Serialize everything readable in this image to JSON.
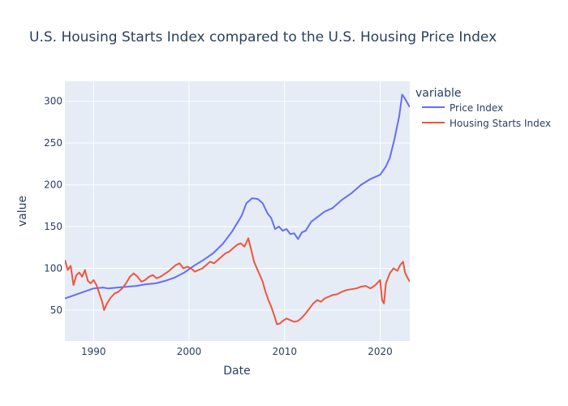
{
  "chart_data": {
    "type": "line",
    "title": "U.S. Housing Starts Index compared to the U.S. Housing Price Index",
    "xlabel": "Date",
    "ylabel": "value",
    "xlim": [
      1987.0,
      2023.1
    ],
    "ylim": [
      13,
      324
    ],
    "xticks": [
      1990,
      2000,
      2010,
      2020
    ],
    "yticks": [
      50,
      100,
      150,
      200,
      250,
      300
    ],
    "legend": {
      "title": "variable",
      "placement": "right"
    },
    "grid": true,
    "colors": {
      "background": "#e5ecf6",
      "grid": "#ffffff"
    },
    "series": [
      {
        "name": "Price Index",
        "color": "#636efa",
        "points": [
          [
            1987.0,
            64
          ],
          [
            1988.0,
            68
          ],
          [
            1989.0,
            72
          ],
          [
            1990.0,
            76
          ],
          [
            1991.0,
            77
          ],
          [
            1991.5,
            76
          ],
          [
            1992.5,
            77
          ],
          [
            1993.5,
            78
          ],
          [
            1994.5,
            79
          ],
          [
            1995.5,
            81
          ],
          [
            1996.5,
            82
          ],
          [
            1997.5,
            85
          ],
          [
            1998.5,
            89
          ],
          [
            1999.5,
            95
          ],
          [
            2000.5,
            103
          ],
          [
            2001.5,
            110
          ],
          [
            2002.5,
            118
          ],
          [
            2003.5,
            129
          ],
          [
            2004.5,
            144
          ],
          [
            2005.5,
            163
          ],
          [
            2006.0,
            178
          ],
          [
            2006.6,
            184
          ],
          [
            2007.2,
            183
          ],
          [
            2007.7,
            178
          ],
          [
            2008.2,
            166
          ],
          [
            2008.6,
            160
          ],
          [
            2009.0,
            147
          ],
          [
            2009.4,
            150
          ],
          [
            2009.8,
            145
          ],
          [
            2010.2,
            147
          ],
          [
            2010.6,
            141
          ],
          [
            2011.0,
            142
          ],
          [
            2011.4,
            135
          ],
          [
            2011.8,
            143
          ],
          [
            2012.2,
            145
          ],
          [
            2012.8,
            156
          ],
          [
            2013.5,
            162
          ],
          [
            2014.2,
            168
          ],
          [
            2015.0,
            172
          ],
          [
            2016.0,
            182
          ],
          [
            2017.0,
            190
          ],
          [
            2018.0,
            200
          ],
          [
            2019.0,
            207
          ],
          [
            2020.0,
            212
          ],
          [
            2020.6,
            222
          ],
          [
            2021.0,
            232
          ],
          [
            2021.5,
            255
          ],
          [
            2022.0,
            282
          ],
          [
            2022.3,
            308
          ],
          [
            2022.6,
            303
          ],
          [
            2023.1,
            293
          ]
        ]
      },
      {
        "name": "Housing Starts Index",
        "color": "#ef553b",
        "points": [
          [
            1987.0,
            110
          ],
          [
            1987.3,
            98
          ],
          [
            1987.6,
            103
          ],
          [
            1987.9,
            80
          ],
          [
            1988.2,
            92
          ],
          [
            1988.5,
            95
          ],
          [
            1988.8,
            90
          ],
          [
            1989.1,
            98
          ],
          [
            1989.4,
            85
          ],
          [
            1989.7,
            82
          ],
          [
            1990.0,
            86
          ],
          [
            1990.3,
            80
          ],
          [
            1990.6,
            70
          ],
          [
            1990.9,
            60
          ],
          [
            1991.1,
            50
          ],
          [
            1991.4,
            58
          ],
          [
            1991.8,
            65
          ],
          [
            1992.2,
            70
          ],
          [
            1992.6,
            72
          ],
          [
            1993.0,
            76
          ],
          [
            1993.4,
            82
          ],
          [
            1993.8,
            90
          ],
          [
            1994.2,
            94
          ],
          [
            1994.6,
            90
          ],
          [
            1995.0,
            84
          ],
          [
            1995.4,
            86
          ],
          [
            1995.8,
            90
          ],
          [
            1996.2,
            92
          ],
          [
            1996.6,
            88
          ],
          [
            1997.0,
            90
          ],
          [
            1997.4,
            93
          ],
          [
            1997.8,
            96
          ],
          [
            1998.2,
            100
          ],
          [
            1998.6,
            104
          ],
          [
            1999.0,
            106
          ],
          [
            1999.4,
            100
          ],
          [
            1999.8,
            102
          ],
          [
            2000.2,
            100
          ],
          [
            2000.6,
            96
          ],
          [
            2001.0,
            98
          ],
          [
            2001.4,
            100
          ],
          [
            2001.8,
            104
          ],
          [
            2002.2,
            108
          ],
          [
            2002.6,
            106
          ],
          [
            2003.0,
            110
          ],
          [
            2003.4,
            114
          ],
          [
            2003.8,
            118
          ],
          [
            2004.2,
            120
          ],
          [
            2004.6,
            124
          ],
          [
            2005.0,
            128
          ],
          [
            2005.4,
            130
          ],
          [
            2005.8,
            126
          ],
          [
            2006.2,
            136
          ],
          [
            2006.5,
            122
          ],
          [
            2006.8,
            108
          ],
          [
            2007.1,
            100
          ],
          [
            2007.4,
            92
          ],
          [
            2007.7,
            84
          ],
          [
            2008.0,
            72
          ],
          [
            2008.3,
            62
          ],
          [
            2008.6,
            54
          ],
          [
            2008.9,
            44
          ],
          [
            2009.2,
            33
          ],
          [
            2009.5,
            34
          ],
          [
            2009.8,
            37
          ],
          [
            2010.2,
            40
          ],
          [
            2010.6,
            38
          ],
          [
            2011.0,
            36
          ],
          [
            2011.4,
            37
          ],
          [
            2011.8,
            41
          ],
          [
            2012.2,
            46
          ],
          [
            2012.6,
            52
          ],
          [
            2013.0,
            58
          ],
          [
            2013.4,
            62
          ],
          [
            2013.8,
            60
          ],
          [
            2014.2,
            64
          ],
          [
            2014.6,
            66
          ],
          [
            2015.0,
            68
          ],
          [
            2015.5,
            69
          ],
          [
            2016.0,
            72
          ],
          [
            2016.5,
            74
          ],
          [
            2017.0,
            75
          ],
          [
            2017.5,
            76
          ],
          [
            2018.0,
            78
          ],
          [
            2018.5,
            79
          ],
          [
            2019.0,
            76
          ],
          [
            2019.5,
            80
          ],
          [
            2020.0,
            86
          ],
          [
            2020.2,
            62
          ],
          [
            2020.4,
            58
          ],
          [
            2020.6,
            82
          ],
          [
            2021.0,
            94
          ],
          [
            2021.4,
            100
          ],
          [
            2021.8,
            97
          ],
          [
            2022.1,
            104
          ],
          [
            2022.4,
            108
          ],
          [
            2022.6,
            95
          ],
          [
            2022.9,
            88
          ],
          [
            2023.1,
            84
          ]
        ]
      }
    ]
  }
}
